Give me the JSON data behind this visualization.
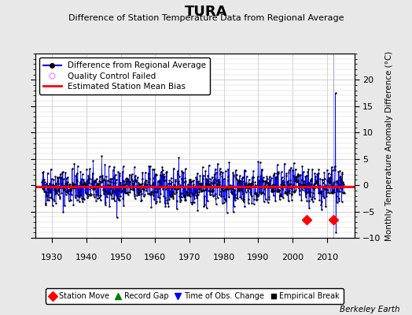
{
  "title": "TURA",
  "subtitle": "Difference of Station Temperature Data from Regional Average",
  "ylabel": "Monthly Temperature Anomaly Difference (°C)",
  "xlabel_years": [
    1930,
    1940,
    1950,
    1960,
    1970,
    1980,
    1990,
    2000,
    2010
  ],
  "xlim": [
    1925,
    2018
  ],
  "ylim": [
    -10,
    25
  ],
  "yticks": [
    -10,
    -5,
    0,
    5,
    10,
    15,
    20
  ],
  "bias_value": -0.3,
  "station_moves": [
    2004,
    2012
  ],
  "station_move_y": -6.5,
  "vertical_line_x": 2012,
  "spike_x": 2012.5,
  "spike_y": 17.5,
  "grid_color": "#cccccc",
  "background_color": "#e8e8e8",
  "plot_bg_color": "#ffffff",
  "line_color": "#0000ff",
  "bias_color": "#ff0000",
  "seed": 42,
  "n_points": 1056,
  "t_start": 1927.0,
  "t_end": 2015.0,
  "std_main": 1.8,
  "mean_main": -0.3,
  "footnote": "Berkeley Earth"
}
